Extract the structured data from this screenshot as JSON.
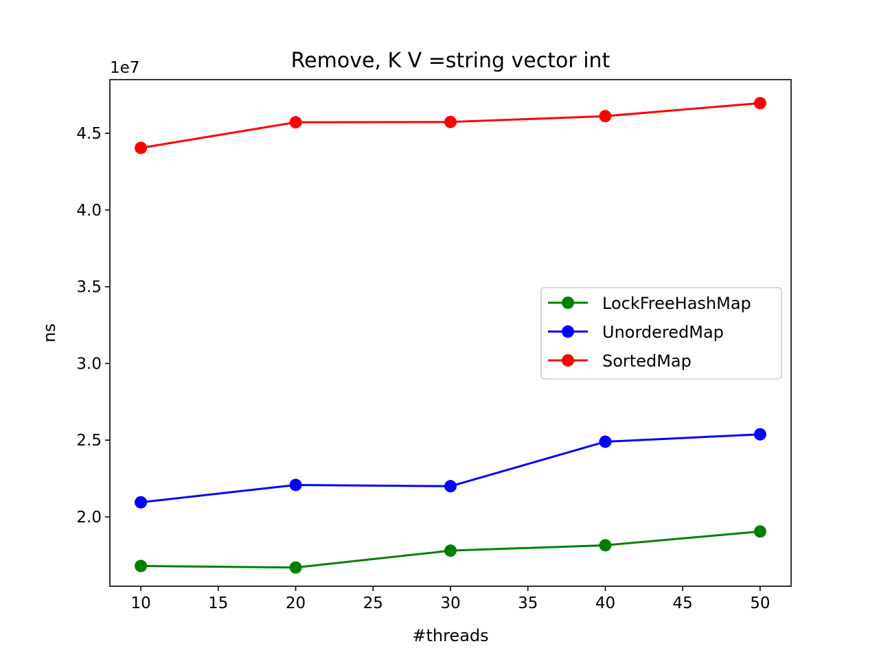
{
  "chart_data": {
    "type": "line",
    "title": "Remove, K V =string vector int",
    "xlabel": "#threads",
    "ylabel": "ns",
    "y_multiplier_label": "1e7",
    "y_scale": 10000000,
    "xlim": [
      8,
      52
    ],
    "ylim": [
      1.548,
      4.85
    ],
    "x_ticks": [
      10,
      15,
      20,
      25,
      30,
      35,
      40,
      45,
      50
    ],
    "y_ticks": [
      2.0,
      2.5,
      3.0,
      3.5,
      4.0,
      4.5
    ],
    "y_tick_labels": [
      "2.0",
      "2.5",
      "3.0",
      "3.5",
      "4.0",
      "4.5"
    ],
    "grid": false,
    "legend_position": "center-right",
    "x": [
      10,
      20,
      30,
      40,
      50
    ],
    "series": [
      {
        "name": "LockFreeHashMap",
        "color": "#008000",
        "values": [
          16800000,
          16700000,
          17800000,
          18150000,
          19050000
        ]
      },
      {
        "name": "UnorderedMap",
        "color": "#0000ff",
        "values": [
          20950000,
          22080000,
          22000000,
          24900000,
          25380000
        ]
      },
      {
        "name": "SortedMap",
        "color": "#ff0000",
        "values": [
          44050000,
          45720000,
          45740000,
          46120000,
          46970000
        ]
      }
    ]
  }
}
